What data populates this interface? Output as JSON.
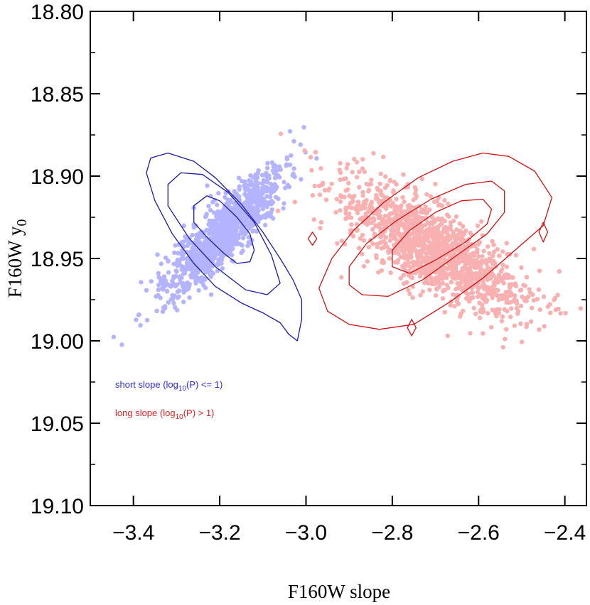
{
  "chart_data": {
    "type": "scatter",
    "xlabel": "F160W slope",
    "ylabel_main": "F160W y",
    "ylabel_sub": "0",
    "xlim": [
      -3.5,
      -2.35
    ],
    "ylim": [
      19.1,
      18.8
    ],
    "x_ticks": [
      -3.4,
      -3.2,
      -3.0,
      -2.8,
      -2.6,
      -2.4
    ],
    "x_tick_labels": [
      "−3.4",
      "−3.2",
      "−3.0",
      "−2.8",
      "−2.6",
      "−2.4"
    ],
    "y_ticks": [
      18.8,
      18.85,
      18.9,
      18.95,
      19.0,
      19.05,
      19.1
    ],
    "y_tick_labels": [
      "18.80",
      "18.85",
      "18.90",
      "18.95",
      "19.00",
      "19.05",
      "19.10"
    ],
    "series": [
      {
        "name": "short",
        "legend_pre": "short slope (log",
        "legend_sub": "10",
        "legend_post": "(P) <= 1)",
        "point_color": "#b3b3ff",
        "line_color": "#1a1aa6",
        "text_color": "#2a2ae0",
        "center": [
          -3.19,
          18.934
        ],
        "sd": [
          0.068,
          0.019
        ],
        "corr": -0.87,
        "n_points": 1100,
        "contours": [
          [
            [
              -3.26,
              18.918
            ],
            [
              -3.23,
              18.912
            ],
            [
              -3.2,
              18.915
            ],
            [
              -3.16,
              18.925
            ],
            [
              -3.13,
              18.935
            ],
            [
              -3.12,
              18.945
            ],
            [
              -3.13,
              18.952
            ],
            [
              -3.16,
              18.953
            ],
            [
              -3.19,
              18.947
            ],
            [
              -3.23,
              18.937
            ],
            [
              -3.26,
              18.928
            ]
          ],
          [
            [
              -3.32,
              18.905
            ],
            [
              -3.29,
              18.898
            ],
            [
              -3.24,
              18.899
            ],
            [
              -3.18,
              18.91
            ],
            [
              -3.12,
              18.928
            ],
            [
              -3.08,
              18.948
            ],
            [
              -3.06,
              18.965
            ],
            [
              -3.09,
              18.972
            ],
            [
              -3.14,
              18.969
            ],
            [
              -3.21,
              18.955
            ],
            [
              -3.27,
              18.938
            ],
            [
              -3.32,
              18.918
            ]
          ],
          [
            [
              -3.36,
              18.889
            ],
            [
              -3.32,
              18.886
            ],
            [
              -3.26,
              18.891
            ],
            [
              -3.21,
              18.901
            ],
            [
              -3.15,
              18.917
            ],
            [
              -3.1,
              18.934
            ],
            [
              -3.06,
              18.95
            ],
            [
              -3.03,
              18.963
            ],
            [
              -3.01,
              18.975
            ],
            [
              -3.01,
              18.987
            ],
            [
              -3.02,
              19.0
            ],
            [
              -3.04,
              18.996
            ],
            [
              -3.06,
              18.989
            ],
            [
              -3.1,
              18.983
            ],
            [
              -3.15,
              18.977
            ],
            [
              -3.21,
              18.967
            ],
            [
              -3.26,
              18.953
            ],
            [
              -3.31,
              18.935
            ],
            [
              -3.35,
              18.915
            ],
            [
              -3.37,
              18.898
            ]
          ]
        ]
      },
      {
        "name": "long",
        "legend_pre": "long slope (log",
        "legend_sub": "10",
        "legend_post": "(P) > 1)",
        "point_color": "#f8b0b0",
        "line_color": "#d01010",
        "text_color": "#e02020",
        "center": [
          -2.71,
          18.944
        ],
        "sd": [
          0.105,
          0.02
        ],
        "corr": 0.75,
        "n_points": 1400,
        "contours": [
          [
            [
              -2.8,
              18.945
            ],
            [
              -2.76,
              18.933
            ],
            [
              -2.7,
              18.922
            ],
            [
              -2.64,
              18.915
            ],
            [
              -2.59,
              18.914
            ],
            [
              -2.57,
              18.92
            ],
            [
              -2.58,
              18.929
            ],
            [
              -2.63,
              18.94
            ],
            [
              -2.7,
              18.951
            ],
            [
              -2.76,
              18.959
            ],
            [
              -2.8,
              18.955
            ]
          ],
          [
            [
              -2.9,
              18.955
            ],
            [
              -2.86,
              18.941
            ],
            [
              -2.79,
              18.927
            ],
            [
              -2.71,
              18.914
            ],
            [
              -2.63,
              18.905
            ],
            [
              -2.57,
              18.903
            ],
            [
              -2.54,
              18.909
            ],
            [
              -2.54,
              18.922
            ],
            [
              -2.58,
              18.935
            ],
            [
              -2.65,
              18.948
            ],
            [
              -2.73,
              18.963
            ],
            [
              -2.81,
              18.973
            ],
            [
              -2.87,
              18.972
            ],
            [
              -2.9,
              18.966
            ]
          ],
          [
            [
              -2.97,
              18.968
            ],
            [
              -2.94,
              18.95
            ],
            [
              -2.89,
              18.933
            ],
            [
              -2.82,
              18.916
            ],
            [
              -2.74,
              18.901
            ],
            [
              -2.66,
              18.891
            ],
            [
              -2.59,
              18.886
            ],
            [
              -2.53,
              18.888
            ],
            [
              -2.47,
              18.897
            ],
            [
              -2.43,
              18.913
            ],
            [
              -2.45,
              18.93
            ],
            [
              -2.52,
              18.946
            ],
            [
              -2.59,
              18.962
            ],
            [
              -2.67,
              18.977
            ],
            [
              -2.75,
              18.99
            ],
            [
              -2.83,
              18.993
            ],
            [
              -2.9,
              18.99
            ],
            [
              -2.95,
              18.982
            ]
          ],
          [
            [
              -2.985,
              18.934
            ],
            [
              -2.975,
              18.938
            ],
            [
              -2.985,
              18.942
            ],
            [
              -2.995,
              18.938
            ]
          ],
          [
            [
              -2.755,
              18.987
            ],
            [
              -2.745,
              18.992
            ],
            [
              -2.755,
              18.997
            ],
            [
              -2.765,
              18.992
            ]
          ],
          [
            [
              -2.45,
              18.928
            ],
            [
              -2.44,
              18.934
            ],
            [
              -2.45,
              18.94
            ],
            [
              -2.46,
              18.934
            ]
          ]
        ]
      }
    ]
  }
}
